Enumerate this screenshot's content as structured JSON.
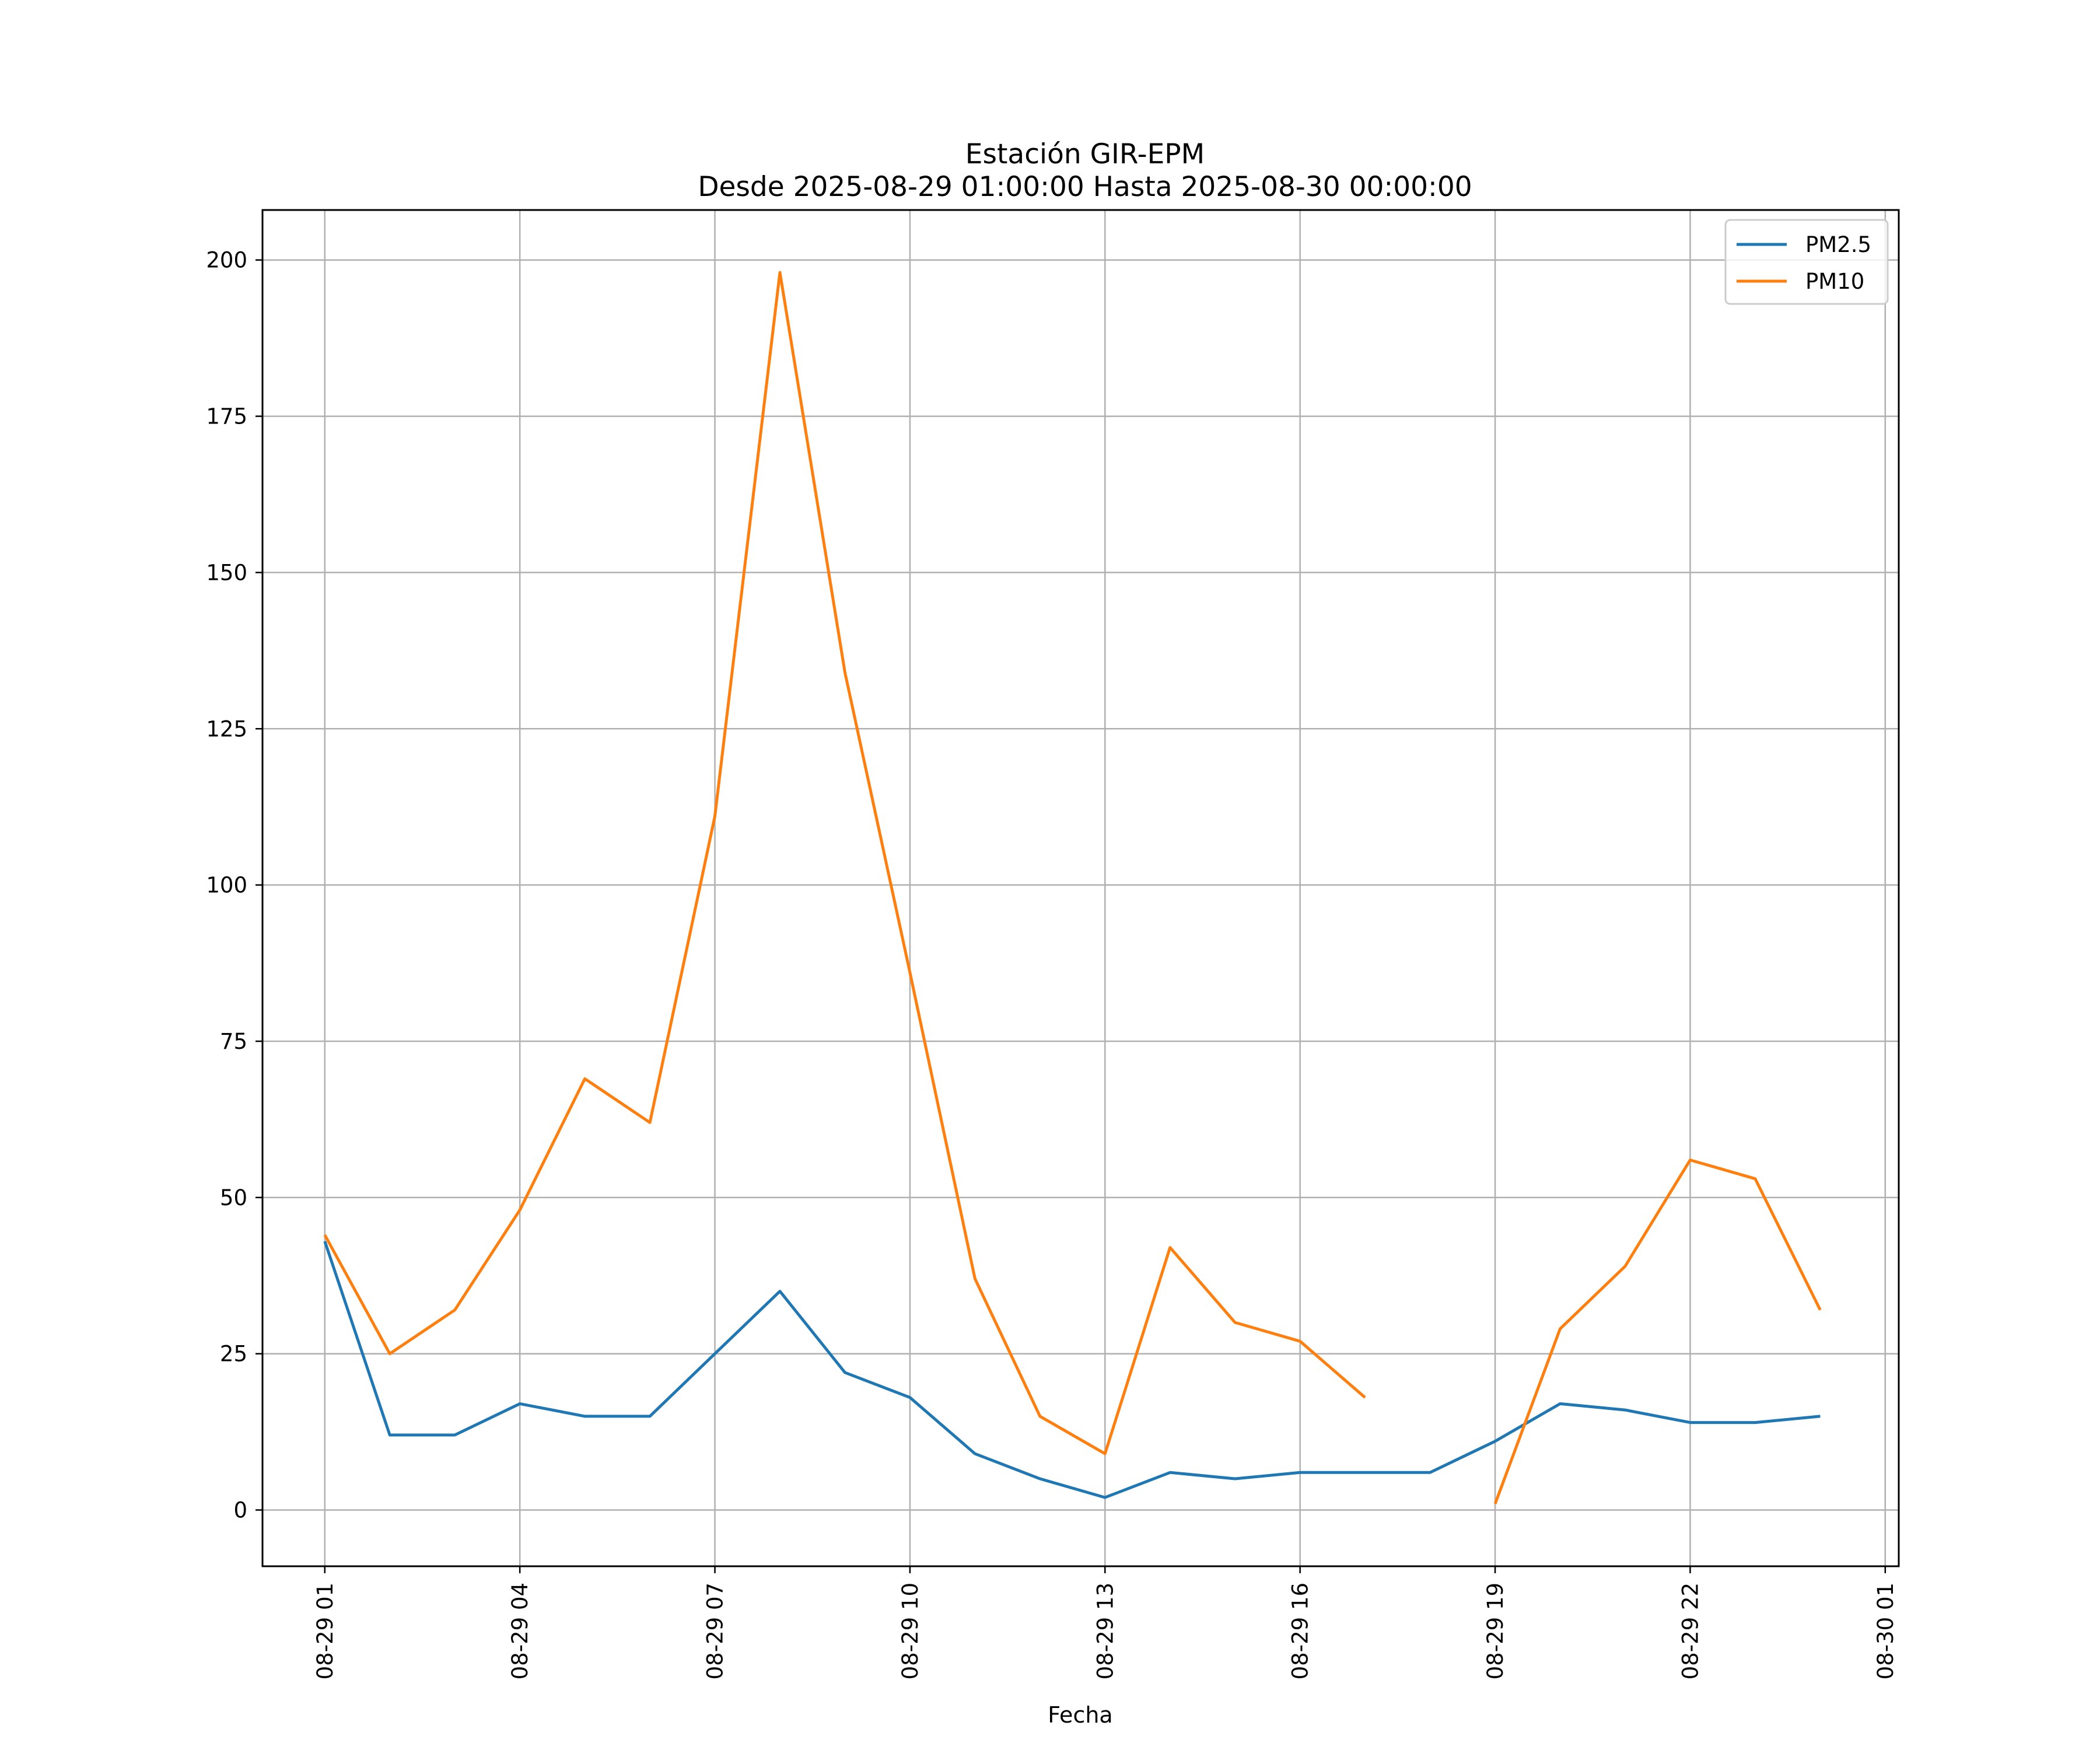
{
  "chart_data": {
    "type": "line",
    "title": "Estación GIR-EPM",
    "subtitle": "Desde 2025-08-29 01:00:00 Hasta 2025-08-30 00:00:00",
    "xlabel": "Fecha",
    "ylabel": "",
    "xlim_hours": [
      -0.958,
      24.208
    ],
    "ylim": [
      -9,
      208
    ],
    "x_hours": [
      0,
      1,
      2,
      3,
      4,
      5,
      6,
      7,
      8,
      9,
      10,
      11,
      12,
      13,
      14,
      15,
      16,
      17,
      18,
      19,
      20,
      21,
      22,
      23
    ],
    "x_tick_hours": [
      0,
      3,
      6,
      9,
      12,
      15,
      18,
      21,
      24
    ],
    "x_tick_labels": [
      "08-29 01",
      "08-29 04",
      "08-29 07",
      "08-29 10",
      "08-29 13",
      "08-29 16",
      "08-29 19",
      "08-29 22",
      "08-30 01"
    ],
    "y_ticks": [
      0,
      25,
      50,
      75,
      100,
      125,
      150,
      175,
      200
    ],
    "y_tick_labels": [
      "0",
      "25",
      "50",
      "75",
      "100",
      "125",
      "150",
      "175",
      "200"
    ],
    "grid": true,
    "legend_position": "top-right",
    "series": [
      {
        "name": "PM2.5",
        "color": "#1f77b4",
        "values": [
          43,
          12,
          12,
          17,
          15,
          15,
          25,
          35,
          22,
          18,
          9,
          5,
          2,
          6,
          5,
          6,
          6,
          6,
          11,
          17,
          16,
          14,
          14,
          15
        ]
      },
      {
        "name": "PM10",
        "color": "#ff7f0e",
        "values": [
          44,
          25,
          32,
          48,
          69,
          62,
          111,
          198,
          134,
          86,
          37,
          15,
          9,
          42,
          30,
          27,
          18,
          null,
          1,
          29,
          39,
          56,
          53,
          32
        ]
      }
    ]
  }
}
